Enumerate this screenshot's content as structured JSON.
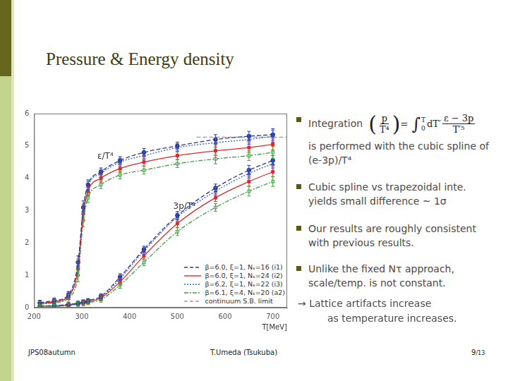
{
  "slide": {
    "title": "Pressure & Energy density",
    "footer_left": "JPS08autumn",
    "footer_center": "T.Umeda (Tsukuba)",
    "page": "9",
    "pages": "/13"
  },
  "bullets": [
    {
      "text": "Integration",
      "formula": {
        "open": "(",
        "lhs_num": "p",
        "lhs_den": "T⁴",
        "close": ")",
        "eq": "=",
        "integral": "∫",
        "lower": "0",
        "upper": "T",
        "dvar": "dT′",
        "rhs_num": "ε − 3p",
        "rhs_den": "T′⁵"
      },
      "continuation": "is performed with the cubic spline of (e-3p)/T⁴"
    },
    {
      "text": "Cubic spline vs trapezoidal inte. yields small difference ~ 1σ"
    },
    {
      "text": "Our results are roughly consistent with previous results."
    },
    {
      "text": "Unlike the fixed Nτ approach, scale/temp. is not constant."
    }
  ],
  "conclusion": {
    "arrow": "→",
    "text": "Lattice artifacts increase",
    "text2": "as temperature increases."
  },
  "chart_data": {
    "type": "line",
    "x_label": "T[MeV]",
    "curve_labels": {
      "energy": "ε/T⁴",
      "pressure": "3p/T⁴"
    },
    "xlim": [
      200,
      730
    ],
    "xticks": [
      200,
      300,
      400,
      500,
      600,
      700
    ],
    "ylim": [
      0,
      6
    ],
    "yticks": [
      0,
      1,
      2,
      3,
      4,
      5,
      6
    ],
    "grid": false,
    "legend": "lower right",
    "series": [
      {
        "name": "β=6.0, ξ=1, Nₛ=16 (i1)",
        "color": "#2a3a8f",
        "line_style": "dashed",
        "marker": "circle",
        "x": [
          212,
          242,
          272,
          292,
          303,
          313,
          340,
          380,
          430,
          500,
          580,
          650,
          700
        ],
        "energy": [
          0.15,
          0.22,
          0.4,
          1.4,
          3.1,
          3.8,
          4.2,
          4.55,
          4.8,
          5.0,
          5.2,
          5.3,
          5.35
        ],
        "energy_err": [
          0.08,
          0.08,
          0.1,
          0.2,
          0.2,
          0.15,
          0.12,
          0.12,
          0.12,
          0.12,
          0.15,
          0.15,
          0.18
        ],
        "pressure": [
          0.05,
          0.06,
          0.1,
          0.14,
          0.18,
          0.22,
          0.35,
          0.95,
          1.8,
          2.85,
          3.7,
          4.25,
          4.55
        ],
        "pressure_err": [
          0.05,
          0.05,
          0.05,
          0.06,
          0.06,
          0.06,
          0.08,
          0.1,
          0.1,
          0.12,
          0.12,
          0.15,
          0.15
        ]
      },
      {
        "name": "β=6.0, ξ=1, Nₛ=24 (i2)",
        "color": "#e02828",
        "line_style": "solid",
        "marker": "rect",
        "x": [
          212,
          242,
          272,
          292,
          303,
          313,
          340,
          380,
          430,
          500,
          580,
          650,
          700
        ],
        "energy": [
          0.12,
          0.18,
          0.35,
          1.2,
          2.9,
          3.6,
          4.0,
          4.3,
          4.5,
          4.7,
          4.85,
          4.95,
          5.05
        ],
        "energy_err": [
          0.08,
          0.08,
          0.1,
          0.2,
          0.2,
          0.15,
          0.12,
          0.12,
          0.12,
          0.12,
          0.15,
          0.15,
          0.18
        ],
        "pressure": [
          0.05,
          0.05,
          0.08,
          0.12,
          0.15,
          0.18,
          0.3,
          0.8,
          1.6,
          2.6,
          3.4,
          3.9,
          4.2
        ],
        "pressure_err": [
          0.05,
          0.05,
          0.05,
          0.06,
          0.06,
          0.06,
          0.08,
          0.1,
          0.1,
          0.12,
          0.12,
          0.15,
          0.15
        ]
      },
      {
        "name": "β=6.2, ξ=1, Nₛ=22 (i3)",
        "color": "#3a5ccc",
        "line_style": "dotted",
        "marker": "triangle",
        "x": [
          212,
          242,
          272,
          292,
          303,
          313,
          340,
          380,
          430,
          500,
          580,
          650,
          700
        ],
        "energy": [
          0.14,
          0.2,
          0.38,
          1.3,
          3.0,
          3.75,
          4.15,
          4.5,
          4.7,
          4.95,
          5.1,
          5.2,
          5.3
        ],
        "energy_err": [
          0.08,
          0.08,
          0.1,
          0.2,
          0.2,
          0.15,
          0.12,
          0.12,
          0.12,
          0.12,
          0.15,
          0.15,
          0.18
        ],
        "pressure": [
          0.05,
          0.06,
          0.09,
          0.13,
          0.17,
          0.2,
          0.32,
          0.9,
          1.75,
          2.8,
          3.6,
          4.15,
          4.45
        ],
        "pressure_err": [
          0.05,
          0.05,
          0.05,
          0.06,
          0.06,
          0.06,
          0.08,
          0.1,
          0.1,
          0.12,
          0.12,
          0.15,
          0.15
        ]
      },
      {
        "name": "β=6.1, ξ=4, Nₛ=20 (a2)",
        "color": "#3f9f3f",
        "line_style": "dashdot",
        "marker": "open_rect",
        "x": [
          212,
          242,
          272,
          292,
          303,
          313,
          340,
          380,
          430,
          500,
          580,
          650,
          700
        ],
        "energy": [
          0.1,
          0.15,
          0.3,
          1.0,
          2.7,
          3.4,
          3.8,
          4.1,
          4.25,
          4.45,
          4.6,
          4.7,
          4.8
        ],
        "energy_err": [
          0.08,
          0.08,
          0.1,
          0.2,
          0.2,
          0.15,
          0.12,
          0.12,
          0.12,
          0.12,
          0.15,
          0.15,
          0.18
        ],
        "pressure": [
          0.04,
          0.04,
          0.06,
          0.1,
          0.12,
          0.15,
          0.25,
          0.7,
          1.4,
          2.35,
          3.1,
          3.6,
          3.9
        ],
        "pressure_err": [
          0.05,
          0.05,
          0.05,
          0.06,
          0.06,
          0.06,
          0.08,
          0.1,
          0.1,
          0.12,
          0.12,
          0.15,
          0.15
        ]
      },
      {
        "name": "continuum S.B. limit",
        "color": "#9a9a9a",
        "line_style": "dashed",
        "marker": "none",
        "x": [
          540,
          730
        ],
        "values": [
          5.27,
          5.27
        ]
      }
    ]
  }
}
